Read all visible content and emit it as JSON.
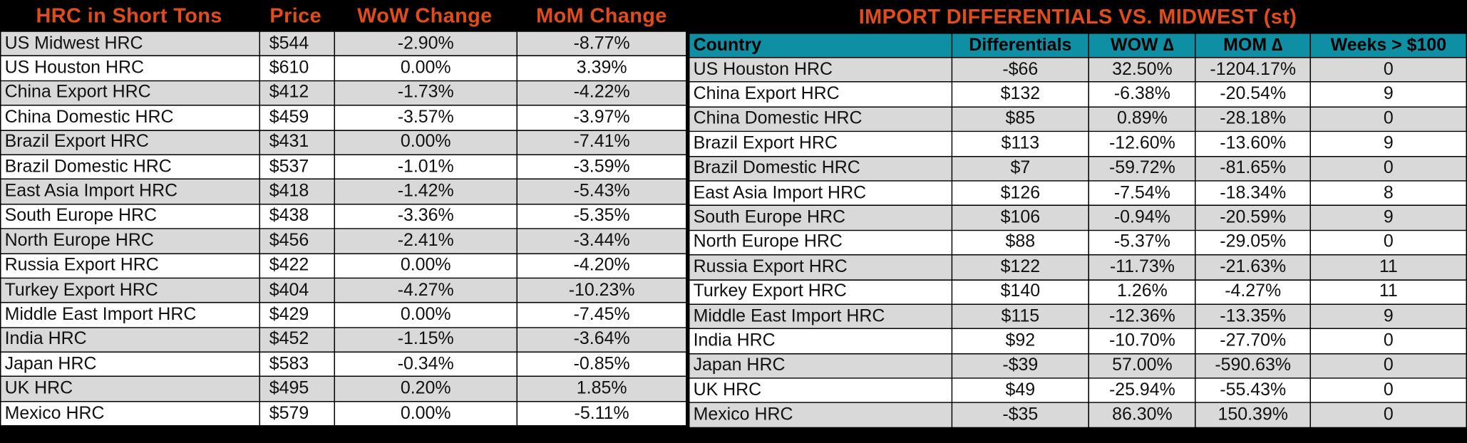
{
  "colors": {
    "banner_text": "#e24c1b",
    "header_bg": "#0e8fa3",
    "row_alt": "#d9d9d9",
    "background": "#000000"
  },
  "left": {
    "headers": [
      "HRC in Short Tons",
      "Price",
      "WoW Change",
      "MoM Change"
    ],
    "rows": [
      {
        "name": "US Midwest HRC",
        "price": "$544",
        "wow": "-2.90%",
        "mom": "-8.77%"
      },
      {
        "name": "US Houston HRC",
        "price": "$610",
        "wow": "0.00%",
        "mom": "3.39%"
      },
      {
        "name": "China Export HRC",
        "price": "$412",
        "wow": "-1.73%",
        "mom": "-4.22%"
      },
      {
        "name": "China Domestic HRC",
        "price": "$459",
        "wow": "-3.57%",
        "mom": "-3.97%"
      },
      {
        "name": "Brazil Export HRC",
        "price": "$431",
        "wow": "0.00%",
        "mom": "-7.41%"
      },
      {
        "name": "Brazil Domestic HRC",
        "price": "$537",
        "wow": "-1.01%",
        "mom": "-3.59%"
      },
      {
        "name": "East Asia Import HRC",
        "price": "$418",
        "wow": "-1.42%",
        "mom": "-5.43%"
      },
      {
        "name": "South Europe HRC",
        "price": "$438",
        "wow": "-3.36%",
        "mom": "-5.35%"
      },
      {
        "name": "North Europe HRC",
        "price": "$456",
        "wow": "-2.41%",
        "mom": "-3.44%"
      },
      {
        "name": "Russia Export HRC",
        "price": "$422",
        "wow": "0.00%",
        "mom": "-4.20%"
      },
      {
        "name": "Turkey Export HRC",
        "price": "$404",
        "wow": "-4.27%",
        "mom": "-10.23%"
      },
      {
        "name": "Middle East Import HRC",
        "price": "$429",
        "wow": "0.00%",
        "mom": "-7.45%"
      },
      {
        "name": "India HRC",
        "price": "$452",
        "wow": "-1.15%",
        "mom": "-3.64%"
      },
      {
        "name": "Japan HRC",
        "price": "$583",
        "wow": "-0.34%",
        "mom": "-0.85%"
      },
      {
        "name": "UK HRC",
        "price": "$495",
        "wow": "0.20%",
        "mom": "1.85%"
      },
      {
        "name": "Mexico HRC",
        "price": "$579",
        "wow": "0.00%",
        "mom": "-5.11%"
      }
    ]
  },
  "right": {
    "title": "IMPORT DIFFERENTIALS VS. MIDWEST (st)",
    "headers": [
      "Country",
      "Differentials",
      "WOW ∆",
      "MOM ∆",
      "Weeks > $100"
    ],
    "rows": [
      {
        "name": "US Houston HRC",
        "diff": "-$66",
        "wow": "32.50%",
        "mom": "-1204.17%",
        "weeks": "0"
      },
      {
        "name": "China Export HRC",
        "diff": "$132",
        "wow": "-6.38%",
        "mom": "-20.54%",
        "weeks": "9"
      },
      {
        "name": "China Domestic HRC",
        "diff": "$85",
        "wow": "0.89%",
        "mom": "-28.18%",
        "weeks": "0"
      },
      {
        "name": "Brazil Export HRC",
        "diff": "$113",
        "wow": "-12.60%",
        "mom": "-13.60%",
        "weeks": "9"
      },
      {
        "name": "Brazil Domestic HRC",
        "diff": "$7",
        "wow": "-59.72%",
        "mom": "-81.65%",
        "weeks": "0"
      },
      {
        "name": "East Asia Import HRC",
        "diff": "$126",
        "wow": "-7.54%",
        "mom": "-18.34%",
        "weeks": "8"
      },
      {
        "name": "South Europe HRC",
        "diff": "$106",
        "wow": "-0.94%",
        "mom": "-20.59%",
        "weeks": "9"
      },
      {
        "name": "North Europe HRC",
        "diff": "$88",
        "wow": "-5.37%",
        "mom": "-29.05%",
        "weeks": "0"
      },
      {
        "name": "Russia Export HRC",
        "diff": "$122",
        "wow": "-11.73%",
        "mom": "-21.63%",
        "weeks": "11"
      },
      {
        "name": "Turkey Export HRC",
        "diff": "$140",
        "wow": "1.26%",
        "mom": "-4.27%",
        "weeks": "11"
      },
      {
        "name": "Middle East Import HRC",
        "diff": "$115",
        "wow": "-12.36%",
        "mom": "-13.35%",
        "weeks": "9"
      },
      {
        "name": "India HRC",
        "diff": "$92",
        "wow": "-10.70%",
        "mom": "-27.70%",
        "weeks": "0"
      },
      {
        "name": "Japan HRC",
        "diff": "-$39",
        "wow": "57.00%",
        "mom": "-590.63%",
        "weeks": "0"
      },
      {
        "name": "UK HRC",
        "diff": "$49",
        "wow": "-25.94%",
        "mom": "-55.43%",
        "weeks": "0"
      },
      {
        "name": "Mexico HRC",
        "diff": "-$35",
        "wow": "86.30%",
        "mom": "150.39%",
        "weeks": "0"
      }
    ]
  }
}
